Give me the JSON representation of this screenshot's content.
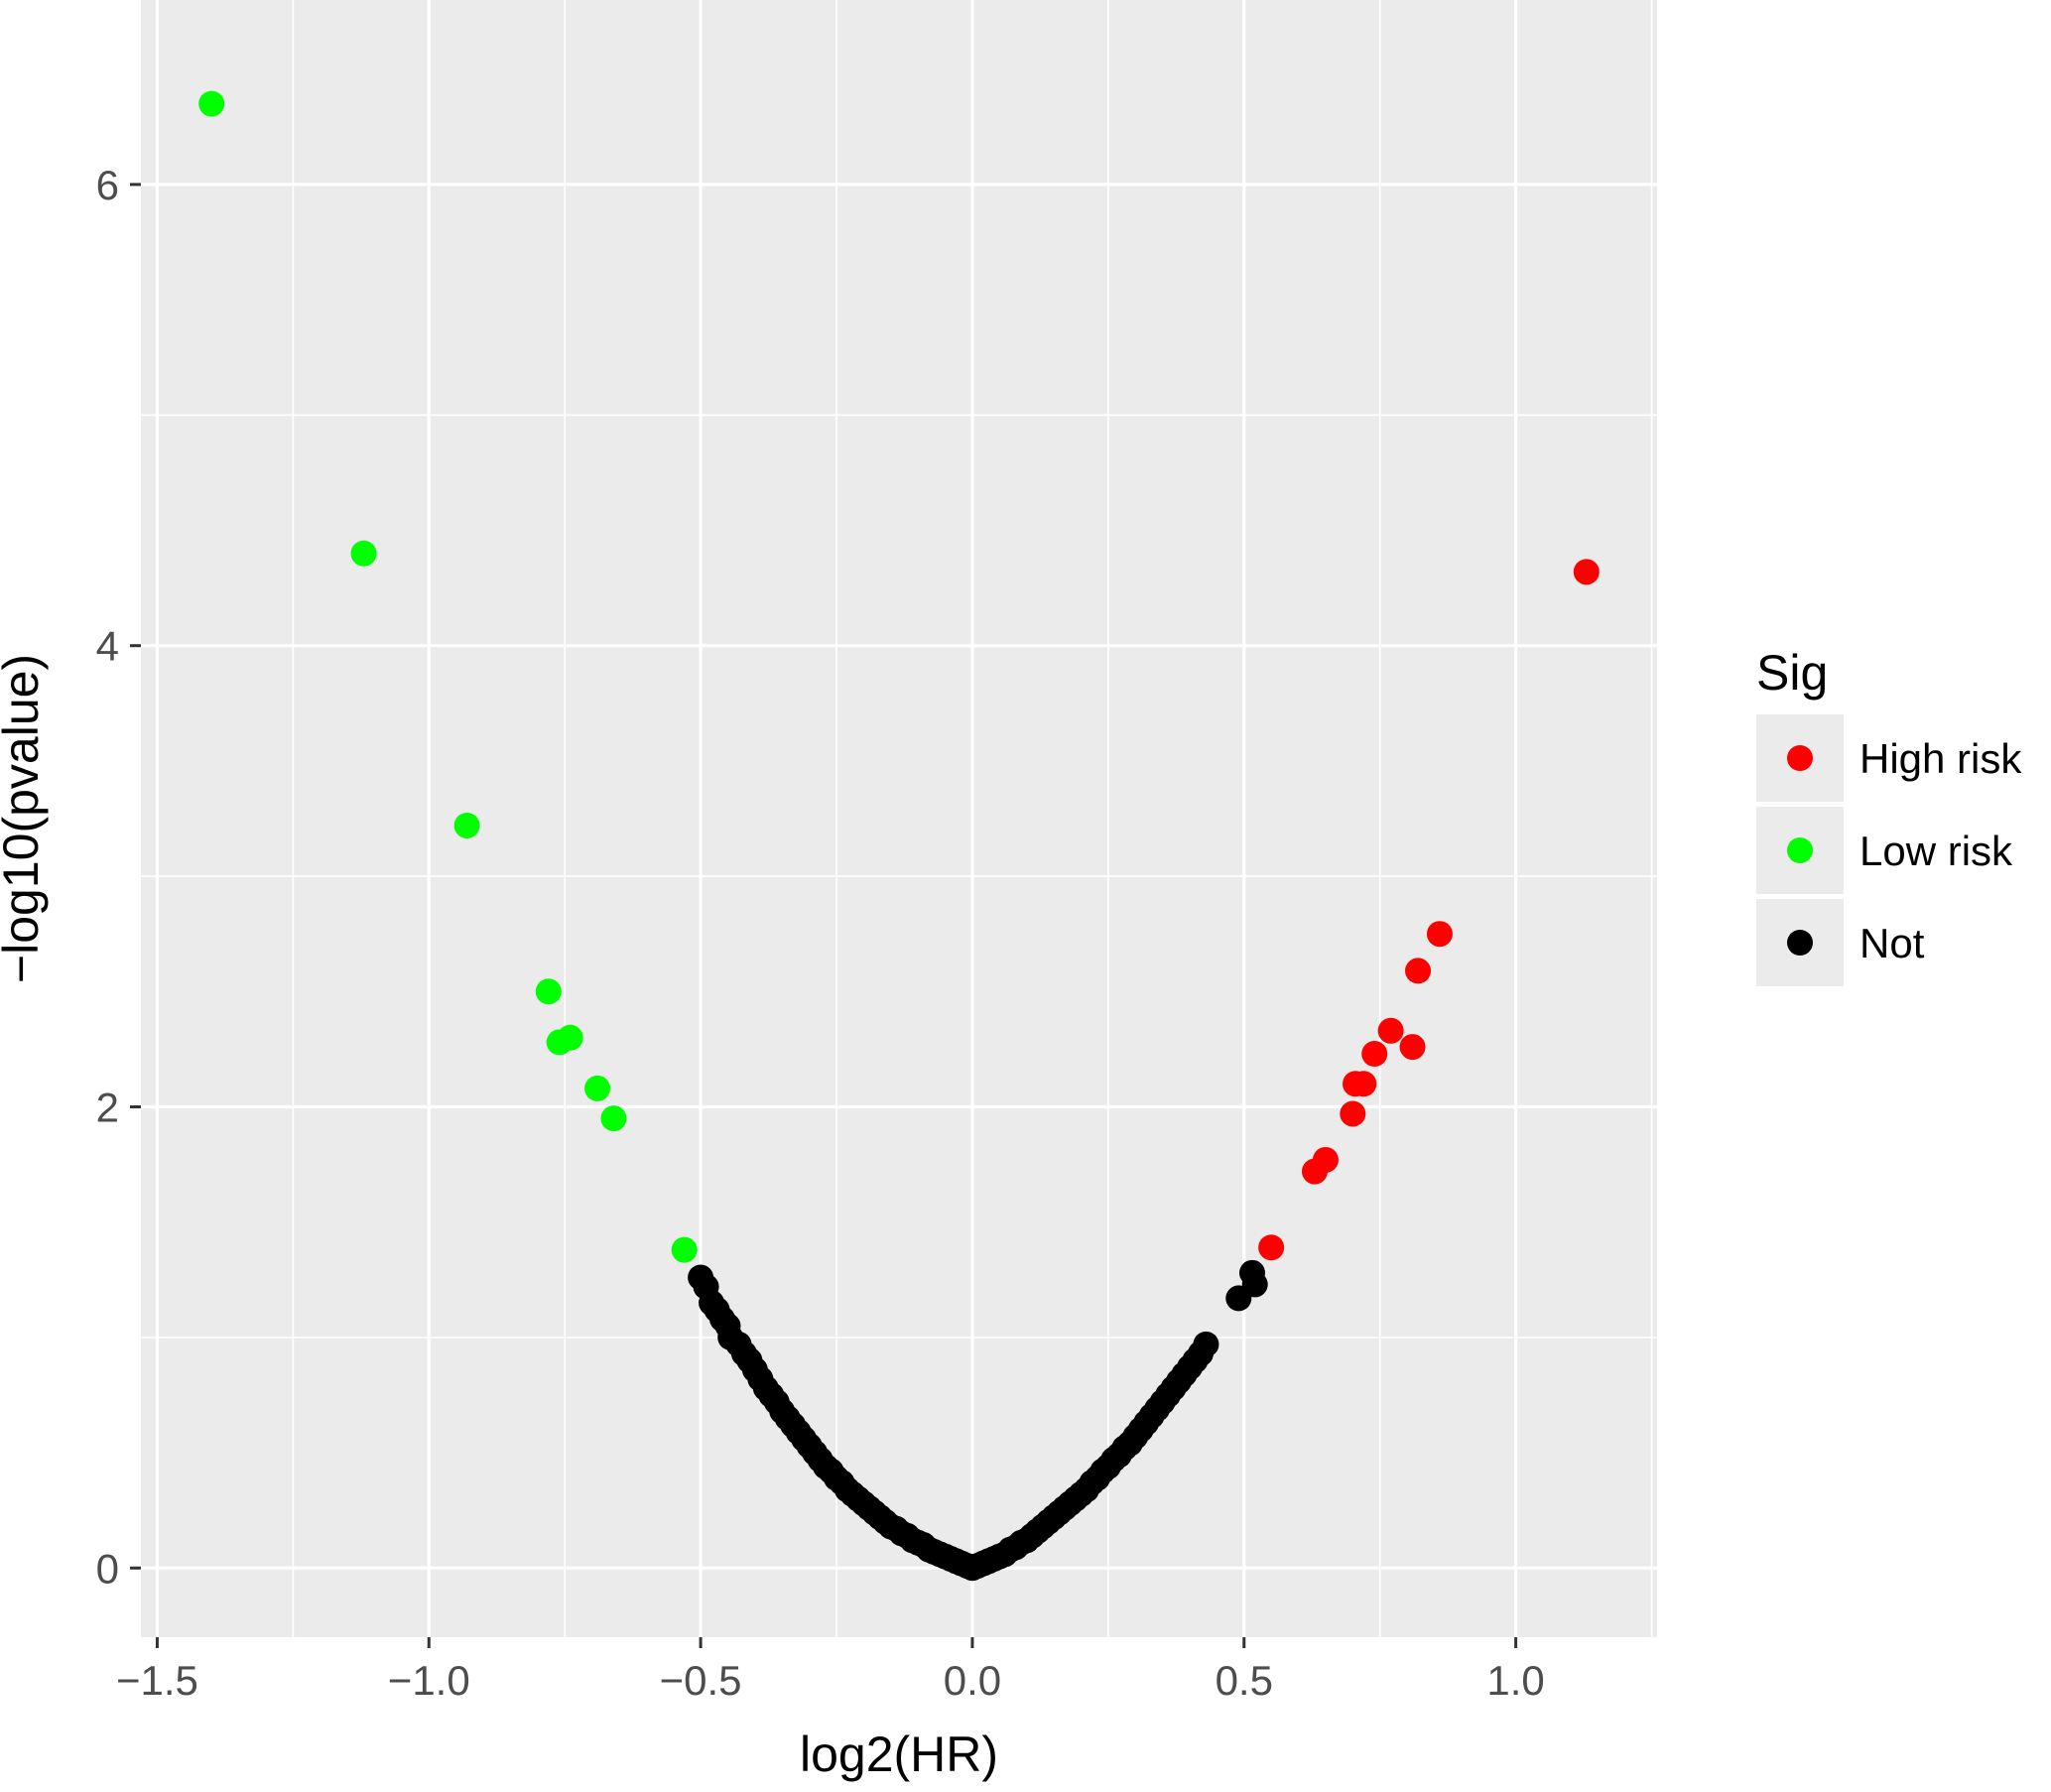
{
  "chart_data": {
    "type": "scatter",
    "title": "",
    "xlabel": "log2(HR)",
    "ylabel": "−log10(pvalue)",
    "xlim": [
      -1.53,
      1.26
    ],
    "ylim": [
      -0.3,
      6.8
    ],
    "x_ticks": [
      -1.5,
      -1.0,
      -0.5,
      0.0,
      0.5,
      1.0
    ],
    "x_tick_labels": [
      "−1.5",
      "−1.0",
      "−0.5",
      "0.0",
      "0.5",
      "1.0"
    ],
    "y_ticks": [
      0,
      2,
      4,
      6
    ],
    "y_tick_labels": [
      "0",
      "2",
      "4",
      "6"
    ],
    "grid": true,
    "background": "#ebebeb",
    "legend": {
      "title": "Sig",
      "position": "right",
      "entries": [
        "High risk",
        "Low risk",
        "Not"
      ]
    },
    "series": [
      {
        "name": "High risk",
        "color": "#ff0000",
        "points": [
          [
            1.13,
            4.32
          ],
          [
            0.86,
            2.75
          ],
          [
            0.82,
            2.59
          ],
          [
            0.77,
            2.33
          ],
          [
            0.81,
            2.26
          ],
          [
            0.74,
            2.23
          ],
          [
            0.72,
            2.1
          ],
          [
            0.705,
            2.1
          ],
          [
            0.7,
            1.97
          ],
          [
            0.65,
            1.77
          ],
          [
            0.63,
            1.72
          ],
          [
            0.55,
            1.39
          ]
        ]
      },
      {
        "name": "Low risk",
        "color": "#00ff00",
        "points": [
          [
            -1.4,
            6.35
          ],
          [
            -1.12,
            4.4
          ],
          [
            -0.93,
            3.22
          ],
          [
            -0.78,
            2.5
          ],
          [
            -0.74,
            2.3
          ],
          [
            -0.76,
            2.28
          ],
          [
            -0.69,
            2.08
          ],
          [
            -0.66,
            1.95
          ],
          [
            -0.53,
            1.38
          ]
        ]
      },
      {
        "name": "Not",
        "color": "#000000",
        "points": [
          [
            -0.5,
            1.26
          ],
          [
            -0.49,
            1.22
          ],
          [
            -0.48,
            1.15
          ],
          [
            -0.47,
            1.12
          ],
          [
            -0.46,
            1.08
          ],
          [
            -0.45,
            1.05
          ],
          [
            -0.445,
            1.0
          ],
          [
            -0.43,
            0.97
          ],
          [
            -0.42,
            0.93
          ],
          [
            -0.41,
            0.9
          ],
          [
            -0.4,
            0.86
          ],
          [
            -0.39,
            0.82
          ],
          [
            -0.38,
            0.78
          ],
          [
            -0.37,
            0.75
          ],
          [
            -0.36,
            0.72
          ],
          [
            -0.35,
            0.68
          ],
          [
            -0.34,
            0.65
          ],
          [
            -0.33,
            0.62
          ],
          [
            -0.32,
            0.59
          ],
          [
            -0.31,
            0.56
          ],
          [
            -0.3,
            0.53
          ],
          [
            -0.29,
            0.5
          ],
          [
            -0.28,
            0.47
          ],
          [
            -0.27,
            0.44
          ],
          [
            -0.26,
            0.42
          ],
          [
            -0.25,
            0.39
          ],
          [
            -0.24,
            0.37
          ],
          [
            -0.23,
            0.34
          ],
          [
            -0.22,
            0.32
          ],
          [
            -0.21,
            0.3
          ],
          [
            -0.2,
            0.28
          ],
          [
            -0.19,
            0.26
          ],
          [
            -0.18,
            0.24
          ],
          [
            -0.17,
            0.22
          ],
          [
            -0.16,
            0.2
          ],
          [
            -0.15,
            0.18
          ],
          [
            -0.14,
            0.17
          ],
          [
            -0.13,
            0.15
          ],
          [
            -0.12,
            0.14
          ],
          [
            -0.11,
            0.12
          ],
          [
            -0.1,
            0.11
          ],
          [
            -0.09,
            0.1
          ],
          [
            -0.08,
            0.08
          ],
          [
            -0.07,
            0.07
          ],
          [
            -0.06,
            0.06
          ],
          [
            -0.05,
            0.05
          ],
          [
            -0.04,
            0.04
          ],
          [
            -0.03,
            0.03
          ],
          [
            -0.02,
            0.02
          ],
          [
            -0.01,
            0.01
          ],
          [
            0.0,
            0.0
          ],
          [
            0.01,
            0.01
          ],
          [
            0.02,
            0.02
          ],
          [
            0.03,
            0.03
          ],
          [
            0.04,
            0.04
          ],
          [
            0.05,
            0.05
          ],
          [
            0.06,
            0.06
          ],
          [
            0.07,
            0.08
          ],
          [
            0.08,
            0.09
          ],
          [
            0.09,
            0.11
          ],
          [
            0.1,
            0.12
          ],
          [
            0.11,
            0.14
          ],
          [
            0.12,
            0.16
          ],
          [
            0.13,
            0.18
          ],
          [
            0.14,
            0.2
          ],
          [
            0.15,
            0.22
          ],
          [
            0.16,
            0.24
          ],
          [
            0.17,
            0.26
          ],
          [
            0.18,
            0.28
          ],
          [
            0.19,
            0.3
          ],
          [
            0.2,
            0.32
          ],
          [
            0.21,
            0.34
          ],
          [
            0.22,
            0.37
          ],
          [
            0.23,
            0.39
          ],
          [
            0.24,
            0.42
          ],
          [
            0.25,
            0.44
          ],
          [
            0.26,
            0.47
          ],
          [
            0.27,
            0.49
          ],
          [
            0.28,
            0.52
          ],
          [
            0.29,
            0.54
          ],
          [
            0.3,
            0.57
          ],
          [
            0.31,
            0.6
          ],
          [
            0.32,
            0.63
          ],
          [
            0.33,
            0.66
          ],
          [
            0.34,
            0.69
          ],
          [
            0.35,
            0.72
          ],
          [
            0.36,
            0.75
          ],
          [
            0.37,
            0.78
          ],
          [
            0.38,
            0.81
          ],
          [
            0.39,
            0.84
          ],
          [
            0.4,
            0.87
          ],
          [
            0.41,
            0.9
          ],
          [
            0.42,
            0.93
          ],
          [
            0.43,
            0.97
          ],
          [
            0.49,
            1.17
          ],
          [
            0.52,
            1.23
          ],
          [
            0.515,
            1.28
          ]
        ]
      }
    ]
  }
}
